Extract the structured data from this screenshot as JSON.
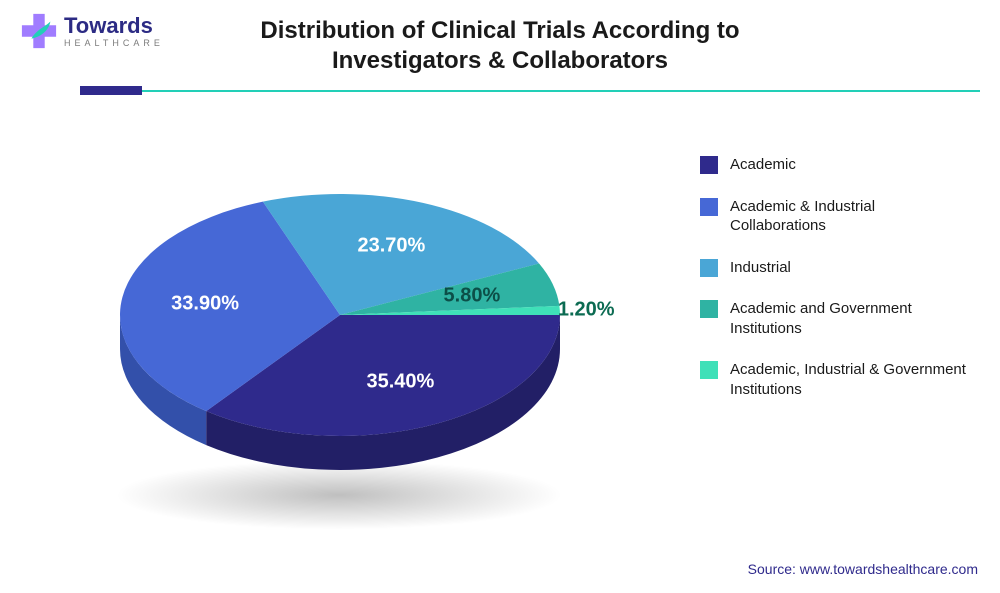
{
  "brand": {
    "name": "Towards",
    "subtitle": "HEALTHCARE",
    "cross_color": "#a07cff",
    "leaf_color": "#22cfb7",
    "text_color": "#2c2b84"
  },
  "title": {
    "text": "Distribution of Clinical Trials According to\nInvestigators & Collaborators",
    "fontsize": 24,
    "color": "#1a1a1a"
  },
  "divider": {
    "accent_color": "#2f2a8c",
    "line_color": "#22cfb7",
    "accent_width": 62
  },
  "chart": {
    "type": "pie",
    "tilt": 0.55,
    "depth": 34,
    "start_angle": 0,
    "label_color": "#ffffff",
    "label_fontsize": 20,
    "slices": [
      {
        "label": "Academic",
        "value": 35.4,
        "display": "35.40%",
        "color_top": "#2f2a8c",
        "color_side": "#221f66"
      },
      {
        "label": "Academic & Industrial Collaborations",
        "value": 33.9,
        "display": "33.90%",
        "color_top": "#4668d6",
        "color_side": "#3350aa"
      },
      {
        "label": "Industrial",
        "value": 23.7,
        "display": "23.70%",
        "color_top": "#4aa6d6",
        "color_side": "#3682ab"
      },
      {
        "label": "Academic and Government Institutions",
        "value": 5.8,
        "display": "5.80%",
        "color_top": "#2fb3a3",
        "color_side": "#238d80"
      },
      {
        "label": "Academic, Industrial & Government Institutions",
        "value": 1.2,
        "display": "1.20%",
        "color_top": "#3fe0b8",
        "color_side": "#2fb893"
      }
    ],
    "label_overrides": {
      "3": {
        "color": "#0c4f48"
      },
      "4": {
        "color": "#0c6b52",
        "outside": true
      }
    }
  },
  "legend": {
    "fontsize": 15,
    "text_color": "#1a1a1a",
    "swatch_size": 18
  },
  "source": {
    "text": "Source: www.towardshealthcare.com",
    "color": "#2f2a8c",
    "fontsize": 14
  },
  "background_color": "#ffffff"
}
